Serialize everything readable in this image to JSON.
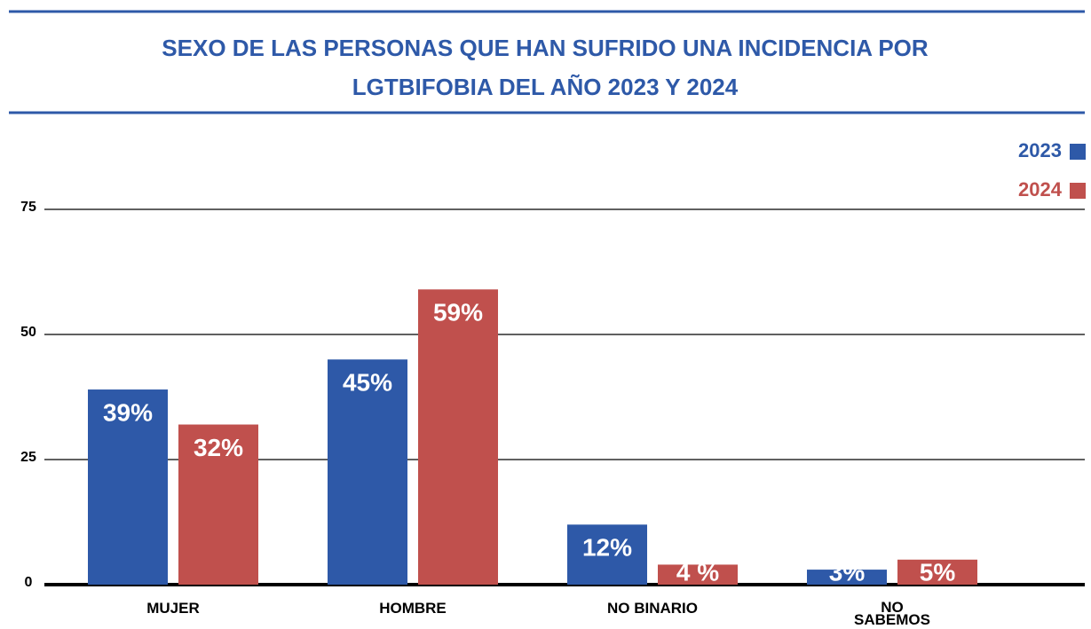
{
  "chart_data": {
    "type": "bar",
    "title": "SEXO DE LAS PERSONAS QUE HAN SUFRIDO UNA INCIDENCIA POR LGTBIFOBIA DEL AÑO 2023 Y 2024",
    "categories": [
      "MUJER",
      "HOMBRE",
      "NO BINARIO",
      "NO SABEMOS"
    ],
    "series": [
      {
        "name": "2023",
        "color": "#2e59a8",
        "values": [
          39,
          45,
          12,
          3
        ],
        "value_labels": [
          "39%",
          "45%",
          "12%",
          "3%"
        ]
      },
      {
        "name": "2024",
        "color": "#c0504d",
        "values": [
          32,
          59,
          4,
          5
        ],
        "value_labels": [
          "32%",
          "59%",
          "4 %",
          "5%"
        ]
      }
    ],
    "ylim": [
      0,
      75
    ],
    "yticks": [
      0,
      25,
      50,
      75
    ],
    "grid": true,
    "legend": "top-right"
  }
}
